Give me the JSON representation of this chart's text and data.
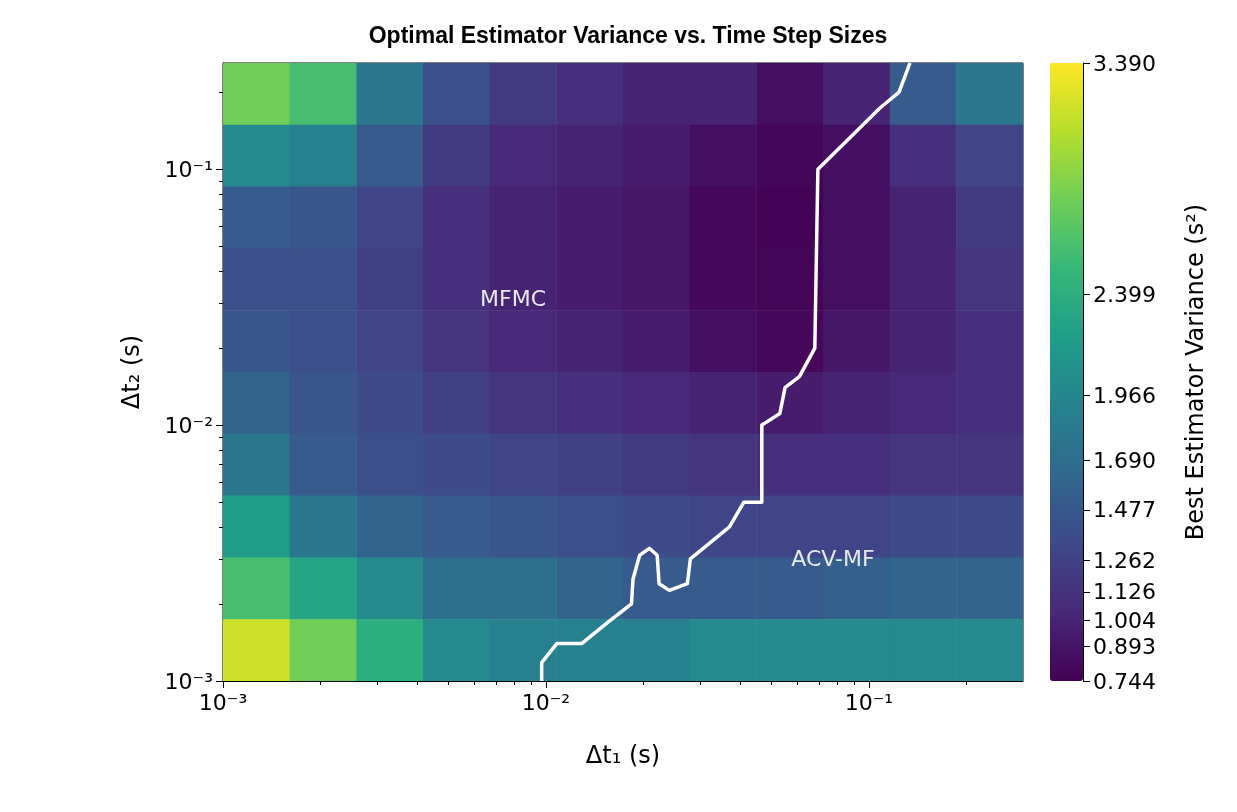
{
  "chart_data": {
    "type": "heatmap",
    "title": "Optimal Estimator Variance vs. Time Step Sizes",
    "xlabel": "Δt₁ (s)",
    "ylabel": "Δt₂ (s)",
    "clabel": "Best Estimator Variance (s²)",
    "log": "xy",
    "xlim": [
      0.001,
      0.3
    ],
    "ylim": [
      0.001,
      0.26
    ],
    "xticks": [
      {
        "value": 0.001,
        "label": "10⁻³"
      },
      {
        "value": 0.01,
        "label": "10⁻²"
      },
      {
        "value": 0.1,
        "label": "10⁻¹"
      }
    ],
    "yticks": [
      {
        "value": 0.001,
        "label": "10⁻³"
      },
      {
        "value": 0.01,
        "label": "10⁻²"
      },
      {
        "value": 0.1,
        "label": "10⁻¹"
      }
    ],
    "cells": [
      [
        2.8,
        2.6,
        1.8,
        1.4,
        1.2,
        1.1,
        1.0,
        1.0,
        0.85,
        1.0,
        1.5,
        1.8
      ],
      [
        2.0,
        1.9,
        1.5,
        1.2,
        1.05,
        1.0,
        0.95,
        0.85,
        0.78,
        0.85,
        1.1,
        1.3
      ],
      [
        1.5,
        1.45,
        1.3,
        1.1,
        1.0,
        0.95,
        0.9,
        0.8,
        0.76,
        0.85,
        1.0,
        1.2
      ],
      [
        1.4,
        1.4,
        1.25,
        1.1,
        1.0,
        0.95,
        0.9,
        0.8,
        0.77,
        0.85,
        1.0,
        1.15
      ],
      [
        1.45,
        1.4,
        1.3,
        1.15,
        1.05,
        1.0,
        0.95,
        0.85,
        0.8,
        0.9,
        1.0,
        1.1
      ],
      [
        1.6,
        1.45,
        1.35,
        1.25,
        1.15,
        1.1,
        1.05,
        1.0,
        0.95,
        1.0,
        1.05,
        1.1
      ],
      [
        1.8,
        1.5,
        1.4,
        1.35,
        1.3,
        1.25,
        1.2,
        1.15,
        1.1,
        1.1,
        1.15,
        1.15
      ],
      [
        2.2,
        1.8,
        1.6,
        1.5,
        1.45,
        1.4,
        1.35,
        1.3,
        1.3,
        1.3,
        1.35,
        1.35
      ],
      [
        2.6,
        2.3,
        2.0,
        1.7,
        1.7,
        1.6,
        1.5,
        1.5,
        1.5,
        1.55,
        1.6,
        1.6
      ],
      [
        3.2,
        2.8,
        2.4,
        2.0,
        1.9,
        1.9,
        1.9,
        2.0,
        2.0,
        2.0,
        2.0,
        2.0
      ]
    ],
    "clim": [
      0.744,
      3.39
    ],
    "cticks": [
      {
        "value": 0.744,
        "label": "0.744"
      },
      {
        "value": 0.893,
        "label": "0.893"
      },
      {
        "value": 1.004,
        "label": "1.004"
      },
      {
        "value": 1.126,
        "label": "1.126"
      },
      {
        "value": 1.262,
        "label": "1.262"
      },
      {
        "value": 1.477,
        "label": "1.477"
      },
      {
        "value": 1.69,
        "label": "1.690"
      },
      {
        "value": 1.966,
        "label": "1.966"
      },
      {
        "value": 2.399,
        "label": "2.399"
      },
      {
        "value": 3.39,
        "label": "3.390"
      }
    ],
    "series": [
      {
        "type": "line",
        "color": "#ffffff",
        "x": [
          0.0097,
          0.0097,
          0.0108,
          0.0129,
          0.0155,
          0.0184,
          0.0186,
          0.0195,
          0.0209,
          0.0221,
          0.0224,
          0.0241,
          0.0274,
          0.028,
          0.037,
          0.041,
          0.0466,
          0.0466,
          0.053,
          0.055,
          0.061,
          0.068,
          0.0695,
          0.087,
          0.108,
          0.124,
          0.134
        ],
        "values": [
          0.001,
          0.00118,
          0.0014,
          0.0014,
          0.00169,
          0.002,
          0.0025,
          0.0031,
          0.0033,
          0.0031,
          0.0024,
          0.00226,
          0.0024,
          0.003,
          0.004,
          0.005,
          0.005,
          0.01,
          0.0111,
          0.014,
          0.0155,
          0.02,
          0.1,
          0.132,
          0.173,
          0.2,
          0.26
        ]
      }
    ],
    "marker": "none",
    "line_style": "solid",
    "annotations": [
      "MFMC",
      "ACV-MF"
    ]
  }
}
